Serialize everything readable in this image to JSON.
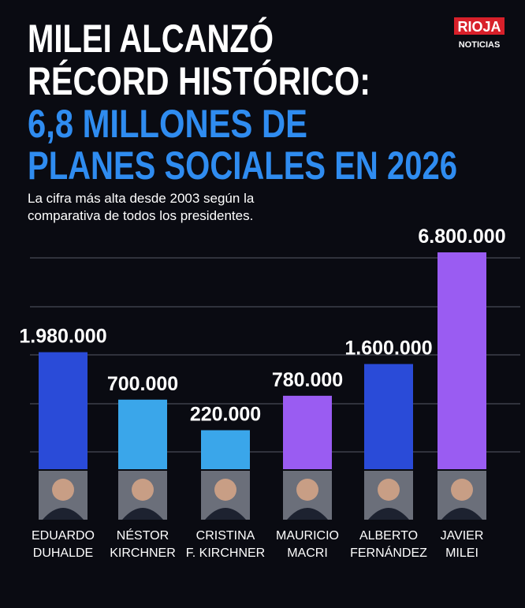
{
  "chart_data": {
    "type": "bar",
    "title": [
      "MILEI ALCANZÓ",
      "RÉCORD HISTÓRICO:"
    ],
    "highlight": [
      "6,8 MILLONES DE",
      "PLANES SOCIALES EN 2026"
    ],
    "subtitle": [
      "La cifra más alta desde 2003 según la",
      "comparativa de todos los presidentes."
    ],
    "logo": [
      "RIOJA",
      "NOTICIAS"
    ],
    "categories": [
      [
        "EDUARDO",
        "DUHALDE"
      ],
      [
        "NÉSTOR",
        "KIRCHNER"
      ],
      [
        "CRISTINA",
        "F. KIRCHNER"
      ],
      [
        "MAURICIO",
        "MACRI"
      ],
      [
        "ALBERTO",
        "FERNÁNDEZ"
      ],
      [
        "JAVIER",
        "MILEI"
      ]
    ],
    "values": [
      1980000,
      700000,
      220000,
      780000,
      1600000,
      6800000
    ],
    "value_labels": [
      "1.980.000",
      "700.000",
      "220.000",
      "780.000",
      "1.600.000",
      "6.800.000"
    ],
    "colors": [
      "#2a4bd8",
      "#3aa6ea",
      "#3aa6ea",
      "#9a5cf2",
      "#2a4bd8",
      "#9a5cf2"
    ]
  }
}
